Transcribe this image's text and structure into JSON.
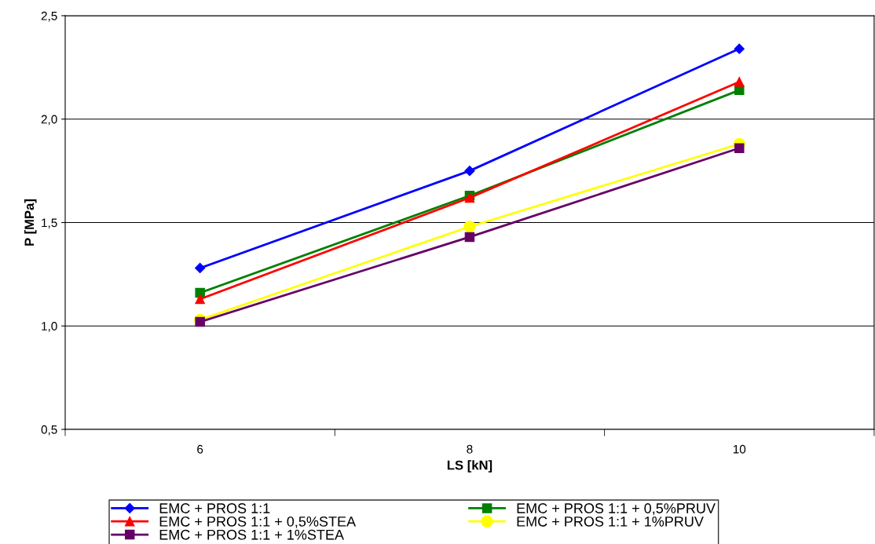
{
  "chart_data": {
    "type": "line",
    "xlabel": "LS [kN]",
    "ylabel": "P [MPa]",
    "categories": [
      "6",
      "8",
      "10"
    ],
    "ylim": [
      0.5,
      2.5
    ],
    "yticks": [
      {
        "value": 0.5,
        "label": "0,5"
      },
      {
        "value": 1.0,
        "label": "1,0"
      },
      {
        "value": 1.5,
        "label": "1,5"
      },
      {
        "value": 2.0,
        "label": "2,0"
      },
      {
        "value": 2.5,
        "label": "2,5"
      }
    ],
    "grid": "y",
    "legend": "bottom",
    "line_style": "solid",
    "series": [
      {
        "name": "EMC + PROS 1:1",
        "color": "#0000ff",
        "marker": "diamond",
        "values": [
          1.28,
          1.75,
          2.34
        ]
      },
      {
        "name": "EMC + PROS 1:1 + 0,5%PRUV",
        "color": "#008000",
        "marker": "square",
        "values": [
          1.16,
          1.63,
          2.14
        ]
      },
      {
        "name": "EMC + PROS 1:1 + 0,5%STEA",
        "color": "#ff0000",
        "marker": "triangle",
        "values": [
          1.13,
          1.62,
          2.18
        ]
      },
      {
        "name": "EMC + PROS 1:1 + 1%PRUV",
        "color": "#ffff00",
        "marker": "circle",
        "values": [
          1.03,
          1.48,
          1.88
        ]
      },
      {
        "name": "EMC + PROS 1:1 + 1%STEA",
        "color": "#660066",
        "marker": "square",
        "values": [
          1.02,
          1.43,
          1.86
        ]
      }
    ]
  }
}
